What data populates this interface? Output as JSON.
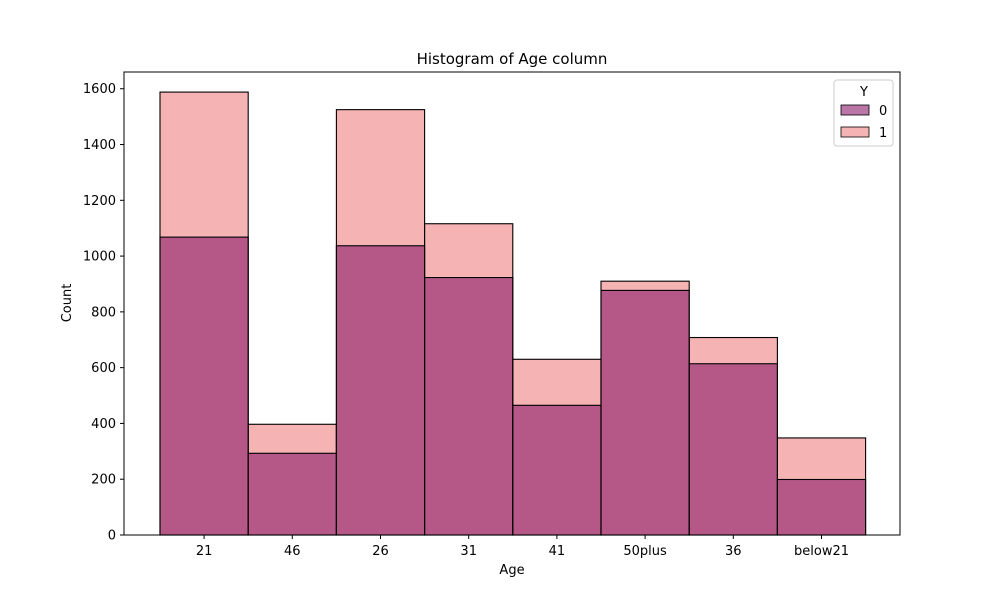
{
  "chart_data": {
    "type": "bar",
    "stacked": "overlay",
    "title": "Histogram of Age column",
    "xlabel": "Age",
    "ylabel": "Count",
    "categories": [
      "21",
      "46",
      "26",
      "31",
      "41",
      "50plus",
      "36",
      "below21"
    ],
    "ylim": [
      0,
      1660
    ],
    "yticks": [
      0,
      200,
      400,
      600,
      800,
      1000,
      1200,
      1400,
      1600
    ],
    "legend": {
      "title": "Y",
      "placement": "top-right"
    },
    "series": [
      {
        "name": "1",
        "color": "#f08080",
        "values": [
          1588,
          397,
          1525,
          1116,
          630,
          910,
          708,
          348
        ]
      },
      {
        "name": "0",
        "color": "#8b1a6b",
        "values": [
          1068,
          293,
          1037,
          923,
          465,
          877,
          614,
          199
        ]
      }
    ],
    "grid": false
  }
}
